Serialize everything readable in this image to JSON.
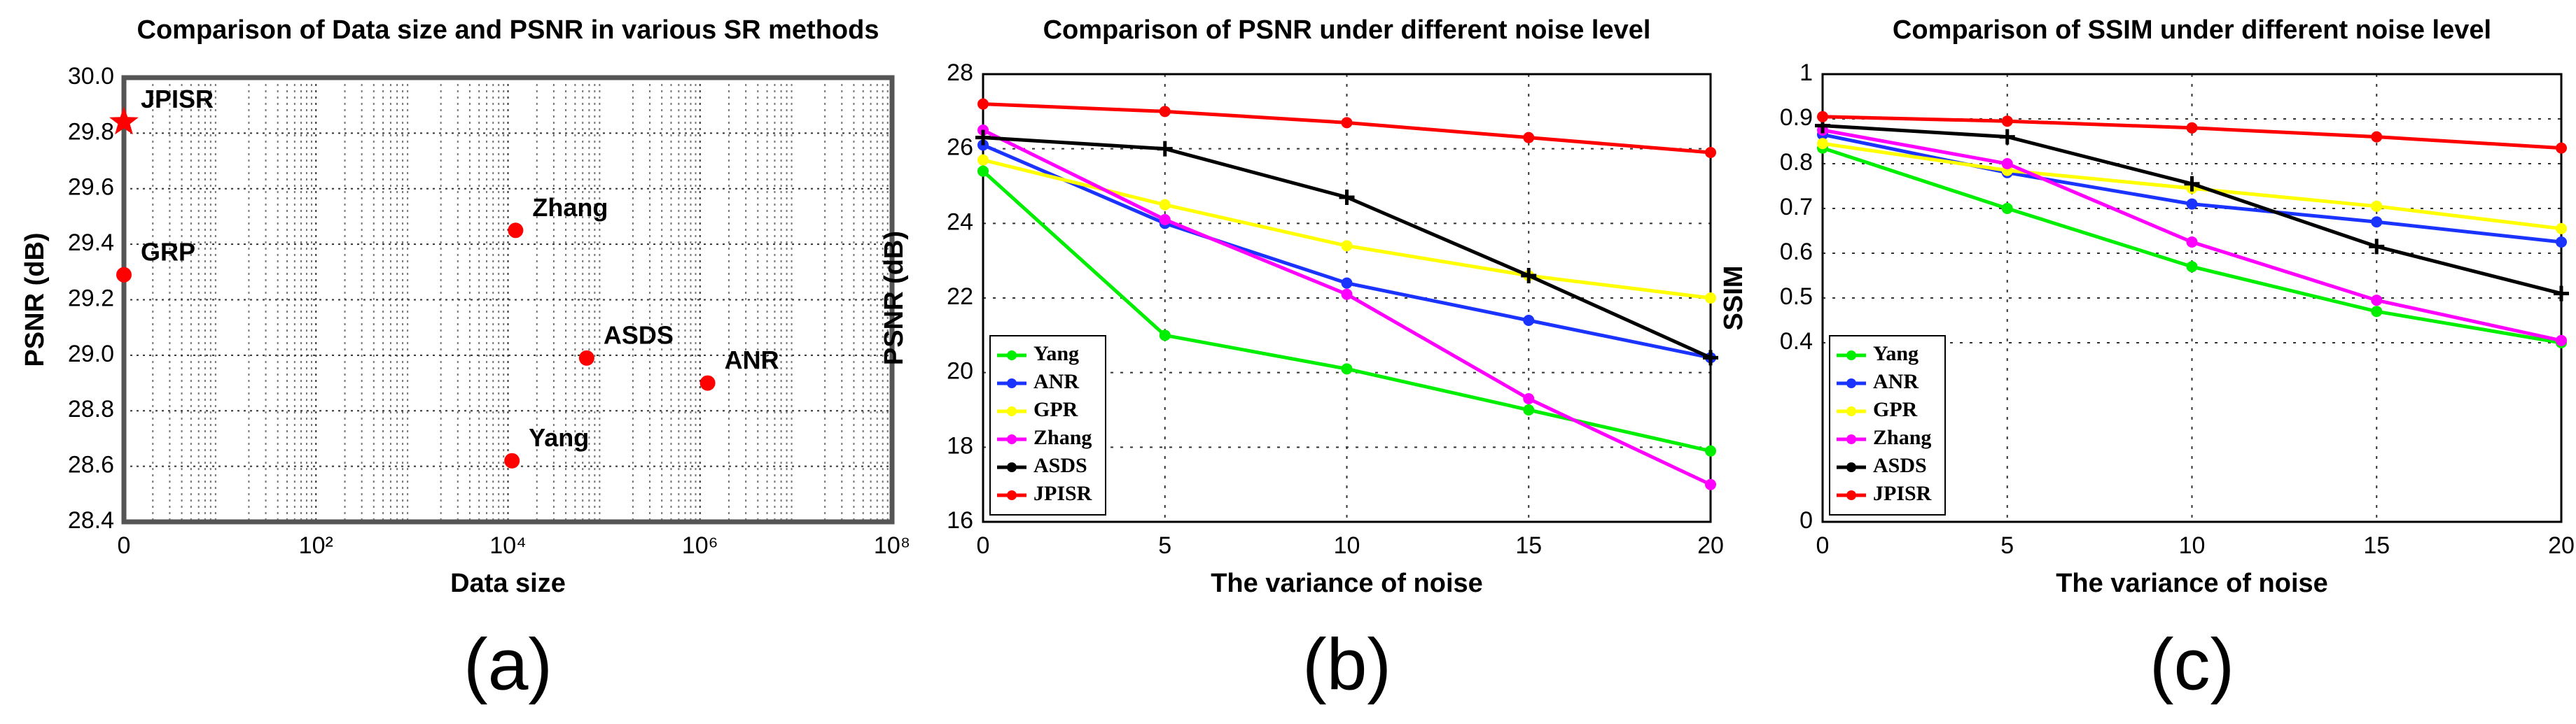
{
  "chart_data": [
    {
      "type": "scatter",
      "title": "Comparison of  Data size and PSNR in various SR methods",
      "x_label": "Data size",
      "y_label": "PSNR (dB)",
      "labels": [
        "JPISR",
        "GRP",
        "Zhang",
        "ASDS",
        "ANR",
        "Yang"
      ],
      "x": [
        1,
        1,
        12000,
        66000,
        1200000,
        11000
      ],
      "values": [
        29.84,
        29.29,
        29.45,
        28.99,
        28.9,
        28.62
      ],
      "markers": [
        "star",
        "circle",
        "circle",
        "circle",
        "circle",
        "circle"
      ],
      "color": "#ff0000",
      "xlog": true,
      "grid": true,
      "xlim": [
        1,
        100000000
      ],
      "xticks": [
        {
          "value": 1,
          "label": "0"
        },
        {
          "value": 100,
          "label": "10²"
        },
        {
          "value": 10000,
          "label": "10⁴"
        },
        {
          "value": 1000000,
          "label": "10⁶"
        },
        {
          "value": 100000000,
          "label": "10⁸"
        }
      ],
      "ylim": [
        28.4,
        30.0
      ],
      "yticks": [
        28.4,
        28.6,
        28.8,
        {
          "value": 29,
          "label": "29.0"
        },
        29.2,
        29.4,
        29.6,
        29.8,
        {
          "value": 30,
          "label": "30.0"
        }
      ],
      "caption": "(a)"
    },
    {
      "type": "line",
      "title": "Comparison of  PSNR under different noise level",
      "x_label": "The variance of  noise",
      "y_label": "PSNR (dB)",
      "x": [
        0,
        5,
        10,
        15,
        20
      ],
      "xlim": [
        0,
        20
      ],
      "xticks": [
        0,
        5,
        10,
        15,
        20
      ],
      "ylim": [
        16,
        28
      ],
      "yticks": [
        16,
        18,
        20,
        22,
        24,
        26,
        28
      ],
      "grid": true,
      "legend": "lower left",
      "series": [
        {
          "name": "Yang",
          "color": "#00ee00",
          "values": [
            25.4,
            21.0,
            20.1,
            19.0,
            17.9
          ]
        },
        {
          "name": "ANR",
          "color": "#1a33ff",
          "values": [
            26.1,
            24.0,
            22.4,
            21.4,
            20.4
          ]
        },
        {
          "name": "GPR",
          "color": "#ffff00",
          "values": [
            25.7,
            24.5,
            23.4,
            22.6,
            22.0
          ]
        },
        {
          "name": "Zhang",
          "color": "#ff00ff",
          "values": [
            26.5,
            24.1,
            22.1,
            19.3,
            17.0
          ]
        },
        {
          "name": "ASDS",
          "color": "#000000",
          "values": [
            26.3,
            26.0,
            24.7,
            22.6,
            20.4
          ]
        },
        {
          "name": "JPISR",
          "color": "#ff0000",
          "values": [
            27.2,
            27.0,
            26.7,
            26.3,
            25.9
          ]
        }
      ],
      "caption": "(b)"
    },
    {
      "type": "line",
      "title": "Comparison of  SSIM under different noise level",
      "x_label": "The variance of  noise",
      "y_label": "SSIM",
      "x": [
        0,
        5,
        10,
        15,
        20
      ],
      "xlim": [
        0,
        20
      ],
      "xticks": [
        0,
        5,
        10,
        15,
        20
      ],
      "ylim": [
        0,
        1
      ],
      "yticks": [
        0,
        0.4,
        0.5,
        0.6,
        0.7,
        0.8,
        0.9,
        1
      ],
      "grid": true,
      "legend": "lower left",
      "series": [
        {
          "name": "Yang",
          "color": "#00ee00",
          "values": [
            0.835,
            0.7,
            0.57,
            0.47,
            0.4
          ]
        },
        {
          "name": "ANR",
          "color": "#1a33ff",
          "values": [
            0.865,
            0.78,
            0.71,
            0.67,
            0.625
          ]
        },
        {
          "name": "GPR",
          "color": "#ffff00",
          "values": [
            0.845,
            0.785,
            0.745,
            0.705,
            0.655
          ]
        },
        {
          "name": "Zhang",
          "color": "#ff00ff",
          "values": [
            0.875,
            0.8,
            0.625,
            0.495,
            0.405
          ]
        },
        {
          "name": "ASDS",
          "color": "#000000",
          "values": [
            0.885,
            0.86,
            0.755,
            0.615,
            0.51
          ]
        },
        {
          "name": "JPISR",
          "color": "#ff0000",
          "values": [
            0.905,
            0.895,
            0.88,
            0.86,
            0.835
          ]
        }
      ],
      "caption": "(c)"
    }
  ]
}
